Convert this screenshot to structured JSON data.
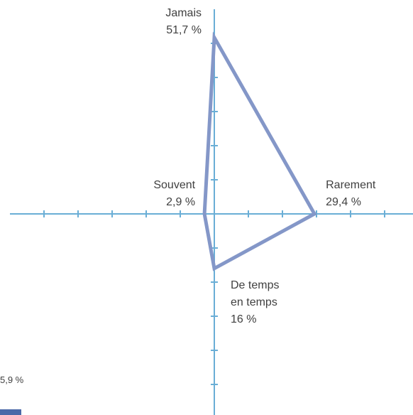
{
  "chart_data": {
    "type": "radar",
    "categories": [
      "Jamais",
      "Rarement",
      "De temps en temps",
      "Souvent"
    ],
    "values": [
      51.7,
      29.4,
      16,
      2.9
    ],
    "value_labels": [
      "51,7 %",
      "29,4 %",
      "16 %",
      "2,9 %"
    ],
    "label_lines": [
      [
        "Jamais",
        "51,7 %"
      ],
      [
        "Rarement",
        "29,4 %"
      ],
      [
        "De temps",
        "en temps",
        "16 %"
      ],
      [
        "Souvent",
        "2,9 %"
      ]
    ],
    "axis_range": [
      0,
      60
    ],
    "tick_interval": 5,
    "grid": false,
    "colors": {
      "axis": "#6aaed6",
      "series": "#8497c8",
      "text": "#404040",
      "legend_marker": "#4a69a8"
    }
  },
  "footnote": "5,9 %"
}
